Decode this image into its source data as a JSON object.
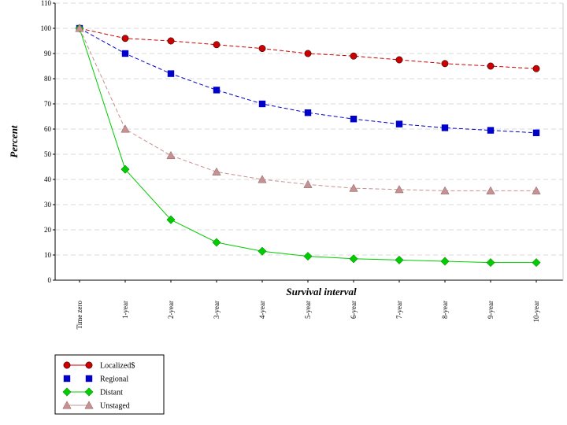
{
  "chart_data": {
    "type": "line",
    "title": "",
    "xlabel": "Survival interval",
    "ylabel": "Percent",
    "categories": [
      "Time zero",
      "1-year",
      "2-year",
      "3-year",
      "4-year",
      "5-year",
      "6-year",
      "7-year",
      "8-year",
      "9-year",
      "10-year"
    ],
    "ylim": [
      0,
      110
    ],
    "yticks": [
      0,
      10,
      20,
      30,
      40,
      50,
      60,
      70,
      80,
      90,
      100,
      110
    ],
    "grid": true,
    "legend_position": "bottom-left",
    "series": [
      {
        "name": "Localized$",
        "color": "#cc0000",
        "marker": "circle",
        "dash": true,
        "values": [
          100,
          96,
          95,
          93.5,
          92,
          90,
          89,
          87.5,
          86,
          85,
          84
        ]
      },
      {
        "name": "Regional",
        "color": "#0000cc",
        "marker": "square",
        "dash": true,
        "values": [
          100,
          90,
          82,
          75.5,
          70,
          66.5,
          64,
          62,
          60.5,
          59.5,
          58.5
        ]
      },
      {
        "name": "Distant",
        "color": "#00cc00",
        "marker": "diamond",
        "dash": false,
        "values": [
          100,
          44,
          24,
          15,
          11.5,
          9.5,
          8.5,
          8,
          7.5,
          7,
          7
        ]
      },
      {
        "name": "Unstaged",
        "color": "#c89090",
        "marker": "triangle",
        "dash": true,
        "values": [
          100,
          60,
          49.5,
          43,
          40,
          38,
          36.5,
          36,
          35.5,
          35.5,
          35.5
        ]
      }
    ]
  }
}
